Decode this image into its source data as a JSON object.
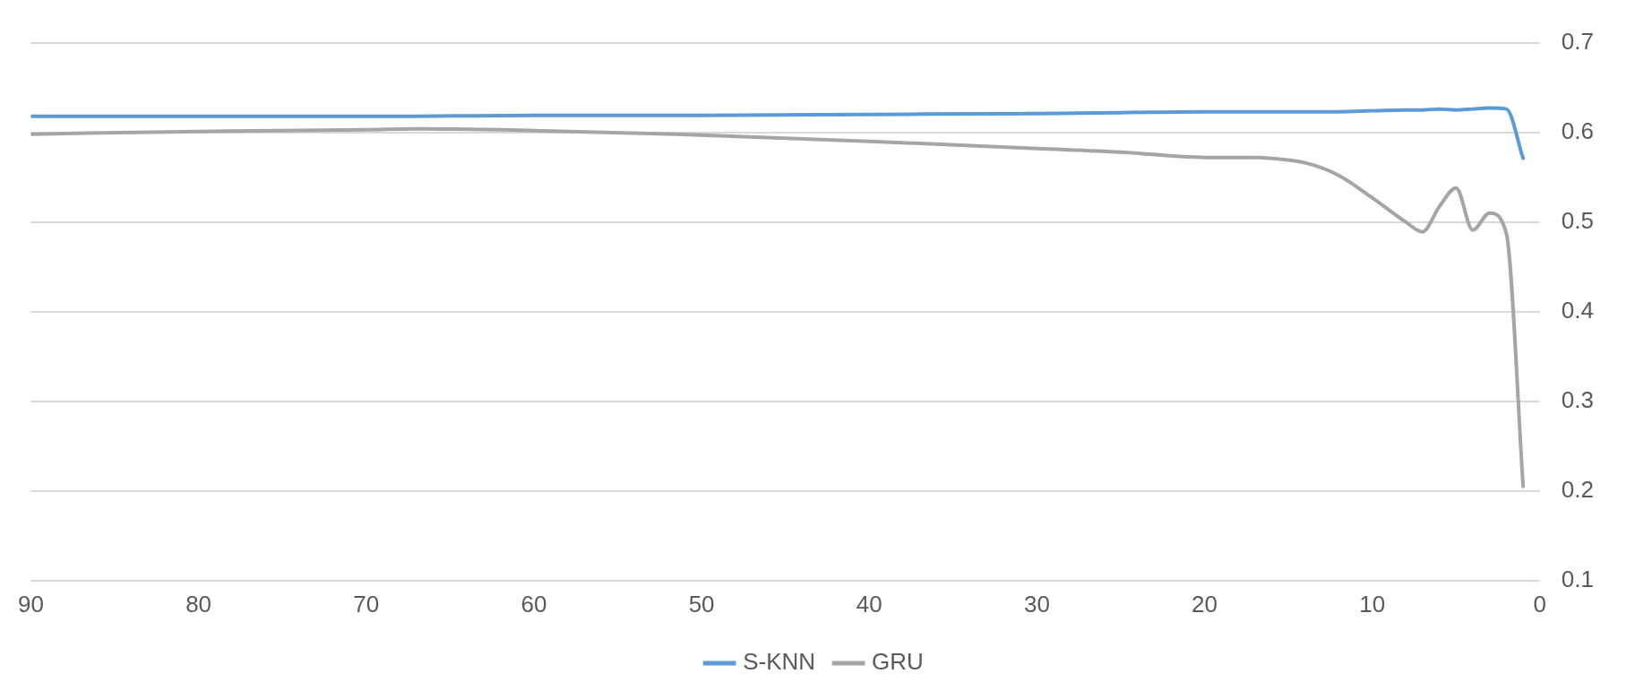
{
  "chart_data": {
    "type": "line",
    "x": [
      90,
      80,
      70,
      67,
      60,
      50,
      40,
      30,
      25,
      20,
      17,
      16,
      14,
      12,
      10,
      8,
      7,
      6,
      5,
      4,
      3,
      2,
      1
    ],
    "series": [
      {
        "name": "S-KNN",
        "color": "#5b9bd5",
        "values": [
          0.618,
          0.618,
          0.618,
          0.618,
          0.619,
          0.619,
          0.62,
          0.621,
          0.622,
          0.623,
          0.623,
          0.623,
          0.623,
          0.623,
          0.624,
          0.625,
          0.625,
          0.626,
          0.625,
          0.626,
          0.627,
          0.626,
          0.571
        ]
      },
      {
        "name": "GRU",
        "color": "#a5a5a5",
        "values": [
          0.598,
          0.601,
          0.603,
          0.604,
          0.602,
          0.597,
          0.59,
          0.582,
          0.578,
          0.572,
          0.572,
          0.571,
          0.566,
          0.552,
          0.527,
          0.5,
          0.489,
          0.517,
          0.538,
          0.491,
          0.51,
          0.487,
          0.205
        ]
      }
    ],
    "xlim": [
      90,
      0
    ],
    "xticks": [
      90,
      80,
      70,
      60,
      50,
      40,
      30,
      20,
      10,
      0
    ],
    "ylim": [
      0.1,
      0.7
    ],
    "yticks": [
      0.1,
      0.2,
      0.3,
      0.4,
      0.5,
      0.6,
      0.7
    ],
    "grid": "y",
    "legend": "bottom",
    "marker": "none",
    "line_style": "solid"
  }
}
